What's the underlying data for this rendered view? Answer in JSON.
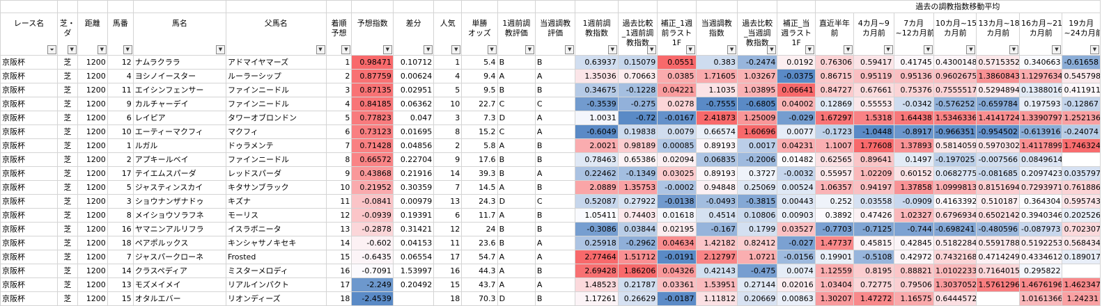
{
  "group_header": "過去の調教指数移動平均",
  "headers": [
    "レース名",
    "芝・\nダ",
    "距離",
    "馬番",
    "馬名",
    "父馬名",
    "着順\n予想",
    "予想指数",
    "差分",
    "人気",
    "単勝\nオッズ",
    "1週前調\n教評価",
    "当週調教\n評価",
    "1週前調\n教指数",
    "過去比較\n_1週前調\n教指数",
    "補正_1週\n前ラスト\n1F",
    "当週調教\n指数",
    "過去比較\n_当週調\n教指数",
    "補正_当\n週ラスト\n1F",
    "直近半年\n前",
    "4カ月~9\nカ月前",
    "7カ月\n~12カ月前",
    "10カ月~15\nカ月前",
    "13カ月~18\nカ月前",
    "16カ月~21\nカ月前",
    "19カ月\n~24カ月前"
  ],
  "rows": [
    [
      "京阪杯",
      "芝",
      "1200",
      "12",
      "ナムラクララ",
      "アドマイヤマーズ",
      "1",
      "0.98471",
      "0.10712",
      "1",
      "5.4",
      "B",
      "B",
      "0.63937",
      "0.15079",
      "0.0551",
      "0.383",
      "-0.2474",
      "0.0192",
      "0.76306",
      "0.59417",
      "0.41745",
      "0.4300148",
      "0.5715352",
      "0.340663",
      "-0.61658"
    ],
    [
      "京阪杯",
      "芝",
      "1200",
      "4",
      "ヨシノイースター",
      "ルーラーシップ",
      "2",
      "0.87759",
      "0.00624",
      "4",
      "9.4",
      "A",
      "A",
      "1.35036",
      "0.70663",
      "0.0385",
      "1.71605",
      "1.03267",
      "-0.0375",
      "0.86715",
      "0.95119",
      "0.95136",
      "0.9602675",
      "1.3860843",
      "1.1297634",
      "0.545798"
    ],
    [
      "京阪杯",
      "芝",
      "1200",
      "11",
      "エイシンフェンサー",
      "ファインニードル",
      "3",
      "0.87135",
      "0.02951",
      "5",
      "9.5",
      "B",
      "B",
      "0.34675",
      "-0.1228",
      "0.04221",
      "1.1035",
      "1.03895",
      "0.06641",
      "0.84727",
      "0.67661",
      "0.75376",
      "0.7555517",
      "0.5294894",
      "0.1388016",
      "0.411911"
    ],
    [
      "京阪杯",
      "芝",
      "1200",
      "9",
      "カルチャーデイ",
      "ファインニードル",
      "4",
      "0.84185",
      "0.06362",
      "10",
      "22.7",
      "C",
      "C",
      "-0.3539",
      "-0.275",
      "0.0278",
      "-0.7555",
      "-0.6805",
      "0.04002",
      "0.12869",
      "0.55553",
      "-0.0342",
      "-0.576252",
      "-0.659784",
      "0.197593",
      "-0.12867"
    ],
    [
      "京阪杯",
      "芝",
      "1200",
      "6",
      "レイピア",
      "タワーオブロンドン",
      "5",
      "0.77823",
      "0.047",
      "3",
      "7.3",
      "D",
      "A",
      "1.0031",
      "-0.72",
      "-0.0167",
      "2.41873",
      "1.25009",
      "-0.029",
      "1.67297",
      "1.5318",
      "1.64438",
      "1.5346336",
      "1.4141724",
      "1.3390797",
      "1.252136"
    ],
    [
      "京阪杯",
      "芝",
      "1200",
      "10",
      "エーティーマクフィ",
      "マクフィ",
      "6",
      "0.73123",
      "0.01695",
      "8",
      "15.2",
      "C",
      "A",
      "-0.6049",
      "0.19838",
      "0.0079",
      "0.66574",
      "1.60696",
      "0.0077",
      "-0.1723",
      "-1.0448",
      "-0.8917",
      "-0.966351",
      "-0.954502",
      "-0.613916",
      "-0.24074"
    ],
    [
      "京阪杯",
      "芝",
      "1200",
      "1",
      "ルガル",
      "ドゥラメンテ",
      "7",
      "0.71428",
      "0.04856",
      "2",
      "5.8",
      "A",
      "B",
      "2.0021",
      "0.98189",
      "0.00085",
      "0.89193",
      "0.0017",
      "0.04231",
      "1.1007",
      "1.77608",
      "1.37893",
      "0.5814059",
      "0.5970302",
      "1.4117899",
      "1.746324"
    ],
    [
      "京阪杯",
      "芝",
      "1200",
      "2",
      "アプキールベイ",
      "ファインニードル",
      "8",
      "0.66572",
      "0.22704",
      "9",
      "17.6",
      "B",
      "B",
      "0.78463",
      "0.65386",
      "0.02094",
      "0.06835",
      "-0.2006",
      "0.01482",
      "0.62565",
      "0.89641",
      "0.1497",
      "-0.197025",
      "-0.007566",
      "0.0849614",
      ""
    ],
    [
      "京阪杯",
      "芝",
      "1200",
      "17",
      "テイエムスパーダ",
      "レッドスパーダ",
      "9",
      "0.43868",
      "0.21916",
      "14",
      "39.3",
      "B",
      "A",
      "0.22462",
      "-0.1349",
      "0.03025",
      "0.89193",
      "0.3727",
      "-0.0032",
      "0.55957",
      "1.02209",
      "0.60152",
      "0.0682775",
      "-0.081685",
      "0.2097423",
      "0.035797"
    ],
    [
      "京阪杯",
      "芝",
      "1200",
      "5",
      "ジャスティンスカイ",
      "キタサンブラック",
      "10",
      "0.21952",
      "0.30359",
      "7",
      "14.5",
      "A",
      "B",
      "2.0889",
      "1.35753",
      "-0.0002",
      "0.94848",
      "0.25069",
      "0.00524",
      "1.06357",
      "0.94197",
      "1.37858",
      "1.0999813",
      "0.8151694",
      "0.7293971",
      "0.761886"
    ],
    [
      "京阪杯",
      "芝",
      "1200",
      "3",
      "ショウナンザナドゥ",
      "キズナ",
      "11",
      "-0.0841",
      "0.00979",
      "13",
      "24.3",
      "D",
      "C",
      "0.52087",
      "0.27922",
      "-0.0138",
      "-0.0493",
      "-0.3815",
      "0.00443",
      "0.252",
      "0.03558",
      "-0.0909",
      "0.4163392",
      "0.510187",
      "0.364304",
      "0.595743"
    ],
    [
      "京阪杯",
      "芝",
      "1200",
      "8",
      "メイショウソラフネ",
      "モーリス",
      "12",
      "-0.0939",
      "0.19391",
      "6",
      "11.7",
      "A",
      "B",
      "1.05411",
      "0.74403",
      "0.01618",
      "0.4514",
      "0.10806",
      "0.00903",
      "0.3892",
      "0.47426",
      "1.02327",
      "0.6796934",
      "0.6502142",
      "0.3940346",
      "0.202526"
    ],
    [
      "京阪杯",
      "芝",
      "1200",
      "16",
      "ヤマニンアルリフラ",
      "イスラボニータ",
      "13",
      "-0.2878",
      "0.31421",
      "12",
      "24",
      "B",
      "B",
      "-0.3086",
      "0.03844",
      "0.02195",
      "-0.167",
      "0.1799",
      "0.03527",
      "-0.7703",
      "-0.7125",
      "-0.744",
      "-0.698241",
      "-0.480596",
      "-0.087973",
      "0.702307"
    ],
    [
      "京阪杯",
      "芝",
      "1200",
      "18",
      "ペアポルックス",
      "キンシャサノキセキ",
      "14",
      "-0.602",
      "0.04153",
      "11",
      "23.6",
      "B",
      "A",
      "0.25918",
      "-0.2962",
      "0.04634",
      "1.42182",
      "0.82412",
      "-0.027",
      "1.47737",
      "0.45815",
      "0.42845",
      "0.5182284",
      "0.5591788",
      "0.5192253",
      "0.568434"
    ],
    [
      "京阪杯",
      "芝",
      "1200",
      "7",
      "ジャスパークローネ",
      "Frosted",
      "15",
      "-0.6435",
      "0.06554",
      "17",
      "54.7",
      "A",
      "A",
      "2.77464",
      "1.51712",
      "-0.0191",
      "2.12797",
      "1.0721",
      "-0.0156",
      "0.19901",
      "-0.5108",
      "0.42972",
      "0.7432168",
      "0.4714249",
      "0.4334612",
      "0.189017"
    ],
    [
      "京阪杯",
      "芝",
      "1200",
      "14",
      "クラスペディア",
      "ミスターメロディ",
      "16",
      "-0.7091",
      "1.53997",
      "16",
      "44.3",
      "A",
      "B",
      "2.69428",
      "1.86206",
      "0.04326",
      "0.42143",
      "-0.475",
      "0.0074",
      "1.12559",
      "0.8195",
      "0.88821",
      "1.0102233",
      "0.7164015",
      "0.295822",
      ""
    ],
    [
      "京阪杯",
      "芝",
      "1200",
      "13",
      "モズメイメイ",
      "リアルインパクト",
      "17",
      "-2.249",
      "0.20492",
      "15",
      "43.7",
      "A",
      "A",
      "1.48523",
      "0.21787",
      "0.03361",
      "1.53951",
      "0.27144",
      "0.02016",
      "1.03404",
      "0.72775",
      "0.79506",
      "1.3037052",
      "1.5761296",
      "1.4676196",
      "1.462347"
    ],
    [
      "京阪杯",
      "芝",
      "1200",
      "15",
      "オタルエバー",
      "リオンディーズ",
      "18",
      "-2.4539",
      "",
      "18",
      "70.3",
      "D",
      "B",
      "1.17261",
      "0.26629",
      "-0.0187",
      "1.11812",
      "0.20669",
      "0.00863",
      "1.30207",
      "1.47272",
      "1.16575",
      "0.6444572",
      "",
      "1.0161366",
      "1.24231"
    ]
  ],
  "scale": {
    "7": {
      "min": -2.4539,
      "max": 0.98471
    },
    "13": {
      "min": -0.6049,
      "max": 2.77464
    },
    "14": {
      "min": -0.72,
      "max": 1.86206
    },
    "15": {
      "min": -0.0191,
      "max": 0.0551
    },
    "16": {
      "min": -0.7555,
      "max": 2.41873
    },
    "17": {
      "min": -0.6805,
      "max": 1.60696
    },
    "18": {
      "min": -0.0375,
      "max": 0.06641
    },
    "ma": {
      "min": -1.0448,
      "max": 1.77608
    }
  },
  "colors": {
    "red": "#f8696b",
    "blue": "#5a8ac6",
    "white": "#fcfcff"
  }
}
